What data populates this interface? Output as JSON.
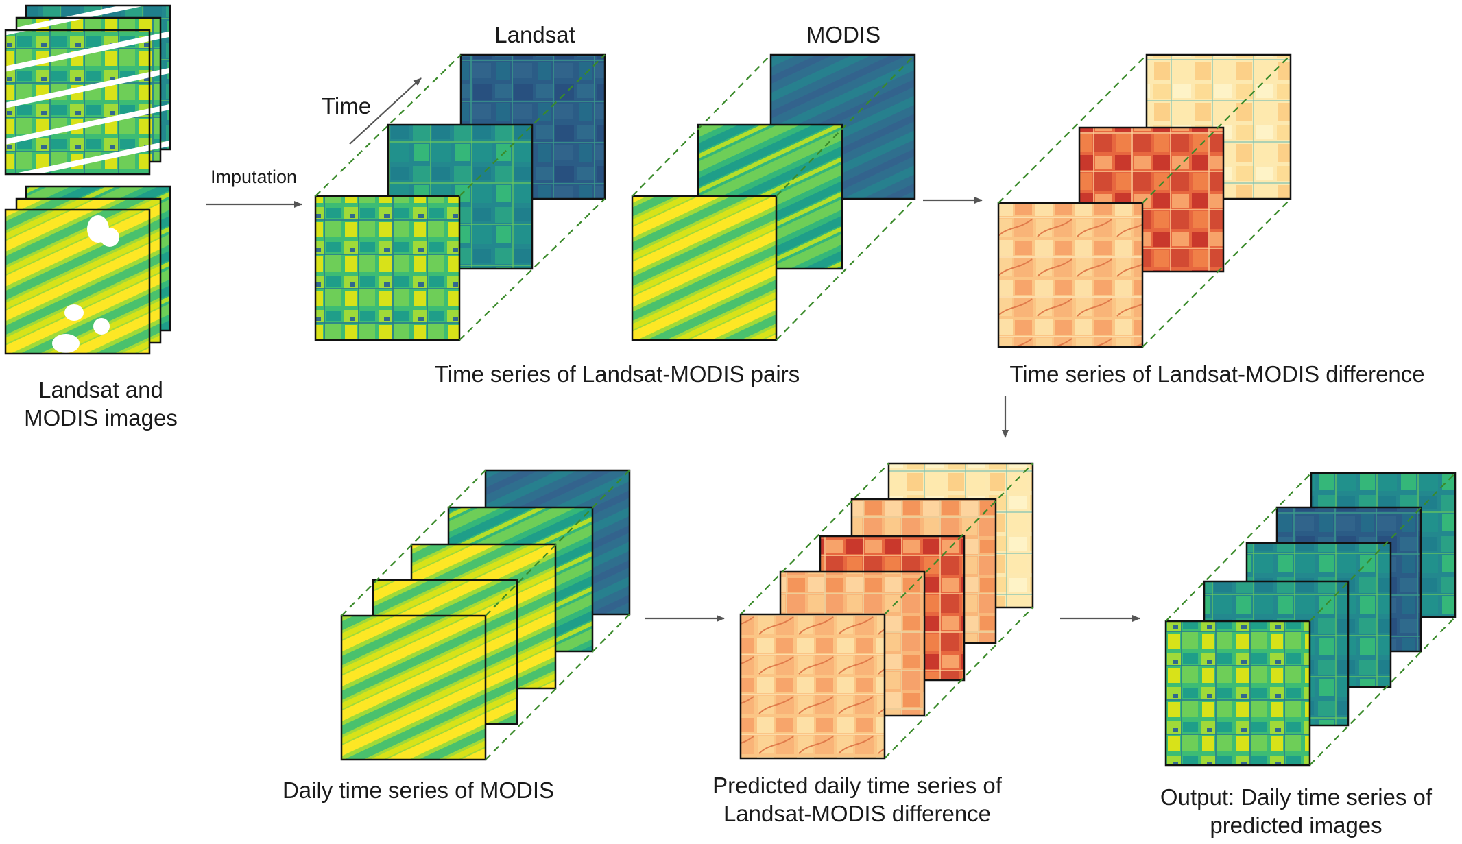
{
  "labels": {
    "input_caption_line1": "Landsat and",
    "input_caption_line2": "MODIS images",
    "imputation": "Imputation",
    "time": "Time",
    "landsat_header": "Landsat",
    "modis_header": "MODIS",
    "pairs_caption": "Time series of Landsat-MODIS pairs",
    "difference_caption": "Time series of Landsat-MODIS difference",
    "daily_modis_caption": "Daily time series of MODIS",
    "predicted_diff_line1": "Predicted daily time series of",
    "predicted_diff_line2": "Landsat-MODIS difference",
    "output_line1": "Output: Daily time series of",
    "output_line2": "predicted images"
  },
  "colors": {
    "connector_dashed": "#3a8a2a",
    "arrow": "#555555",
    "frame": "#111111",
    "viridis": [
      "#46327e",
      "#365c8d",
      "#277f8e",
      "#1fa187",
      "#4ac16d",
      "#a0da39",
      "#fde725"
    ],
    "ylorrd": [
      "#fff7bc",
      "#fee391",
      "#fec44f",
      "#fd8d3c",
      "#e34a33",
      "#bd0026"
    ]
  }
}
